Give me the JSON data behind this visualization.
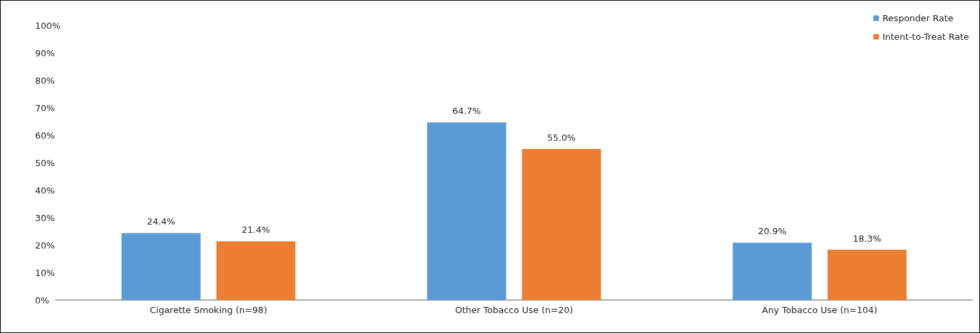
{
  "chart_data": {
    "type": "bar",
    "categories": [
      "Cigarette Smoking (n=98)",
      "Other Tobacco Use (n=20)",
      "Any Tobacco Use (n=104)"
    ],
    "series": [
      {
        "name": "Responder Rate",
        "color": "#5b9bd5",
        "values": [
          24.4,
          64.7,
          20.9
        ],
        "value_labels": [
          "24.4%",
          "64.7%",
          "20.9%"
        ]
      },
      {
        "name": "Intent-to-Treat Rate",
        "color": "#ed7d31",
        "values": [
          21.4,
          55.0,
          18.3
        ],
        "value_labels": [
          "21.4%",
          "55.0%",
          "18.3%"
        ]
      }
    ],
    "ylim": [
      0,
      100
    ],
    "yticks": [
      {
        "value": 0,
        "label": "0%"
      },
      {
        "value": 10,
        "label": "10%"
      },
      {
        "value": 20,
        "label": "20%"
      },
      {
        "value": 30,
        "label": "30%"
      },
      {
        "value": 40,
        "label": "40%"
      },
      {
        "value": 50,
        "label": "50%"
      },
      {
        "value": 60,
        "label": "60%"
      },
      {
        "value": 70,
        "label": "70%"
      },
      {
        "value": 80,
        "label": "80%"
      },
      {
        "value": 90,
        "label": "90%"
      },
      {
        "value": 100,
        "label": "100%"
      }
    ],
    "grid": false,
    "legend": "top right"
  }
}
